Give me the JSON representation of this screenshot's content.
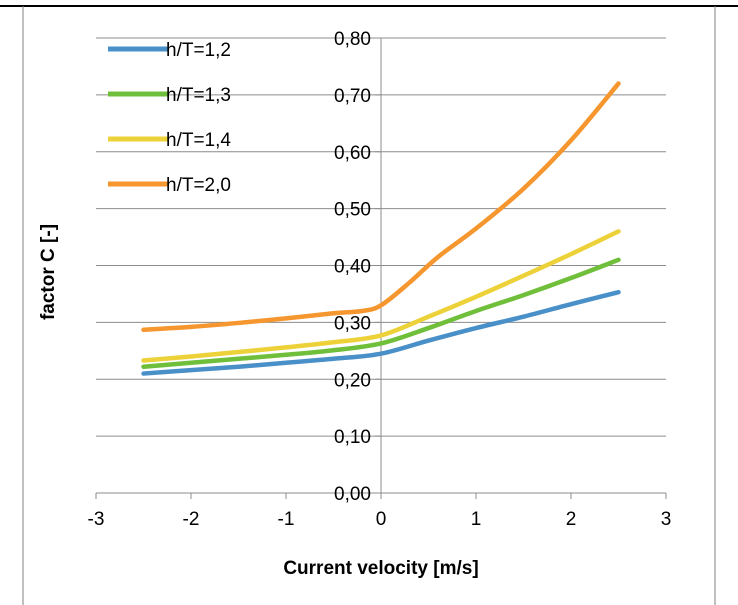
{
  "chart_data": {
    "type": "line",
    "title": "",
    "xlabel": "Current velocity [m/s]",
    "ylabel": "factor C [-]",
    "xlim": [
      -3,
      3
    ],
    "ylim": [
      0,
      0.8
    ],
    "x_ticks": [
      "-3",
      "-2",
      "-1",
      "0",
      "1",
      "2",
      "3"
    ],
    "y_ticks": [
      "0,00",
      "0,10",
      "0,20",
      "0,30",
      "0,40",
      "0,50",
      "0,60",
      "0,70",
      "0,80"
    ],
    "grid": "horizontal",
    "legend_position": "top-left",
    "series": [
      {
        "name": "h/T=1,2",
        "color": "#4a90c8",
        "x": [
          -2.5,
          -2,
          -1.5,
          -1,
          -0.5,
          0,
          0.5,
          1,
          1.5,
          2,
          2.5
        ],
        "y": [
          0.21,
          0.216,
          0.222,
          0.229,
          0.236,
          0.245,
          0.268,
          0.29,
          0.31,
          0.332,
          0.353
        ]
      },
      {
        "name": "h/T=1,3",
        "color": "#6fbf3b",
        "x": [
          -2.5,
          -2,
          -1.5,
          -1,
          -0.5,
          0,
          0.5,
          1,
          1.5,
          2,
          2.5
        ],
        "y": [
          0.222,
          0.229,
          0.236,
          0.243,
          0.251,
          0.263,
          0.29,
          0.32,
          0.348,
          0.378,
          0.41
        ]
      },
      {
        "name": "h/T=1,4",
        "color": "#ecd138",
        "x": [
          -2.5,
          -2,
          -1.5,
          -1,
          -0.5,
          0,
          0.5,
          1,
          1.5,
          2,
          2.5
        ],
        "y": [
          0.233,
          0.24,
          0.248,
          0.256,
          0.265,
          0.277,
          0.31,
          0.345,
          0.382,
          0.42,
          0.46
        ]
      },
      {
        "name": "h/T=2,0",
        "color": "#f5962f",
        "x": [
          -2.5,
          -2,
          -1.5,
          -1,
          -0.5,
          -0.2,
          0,
          0.3,
          0.6,
          1,
          1.5,
          2,
          2.5
        ],
        "y": [
          0.287,
          0.292,
          0.299,
          0.307,
          0.316,
          0.32,
          0.33,
          0.37,
          0.415,
          0.465,
          0.535,
          0.62,
          0.72
        ]
      }
    ]
  }
}
